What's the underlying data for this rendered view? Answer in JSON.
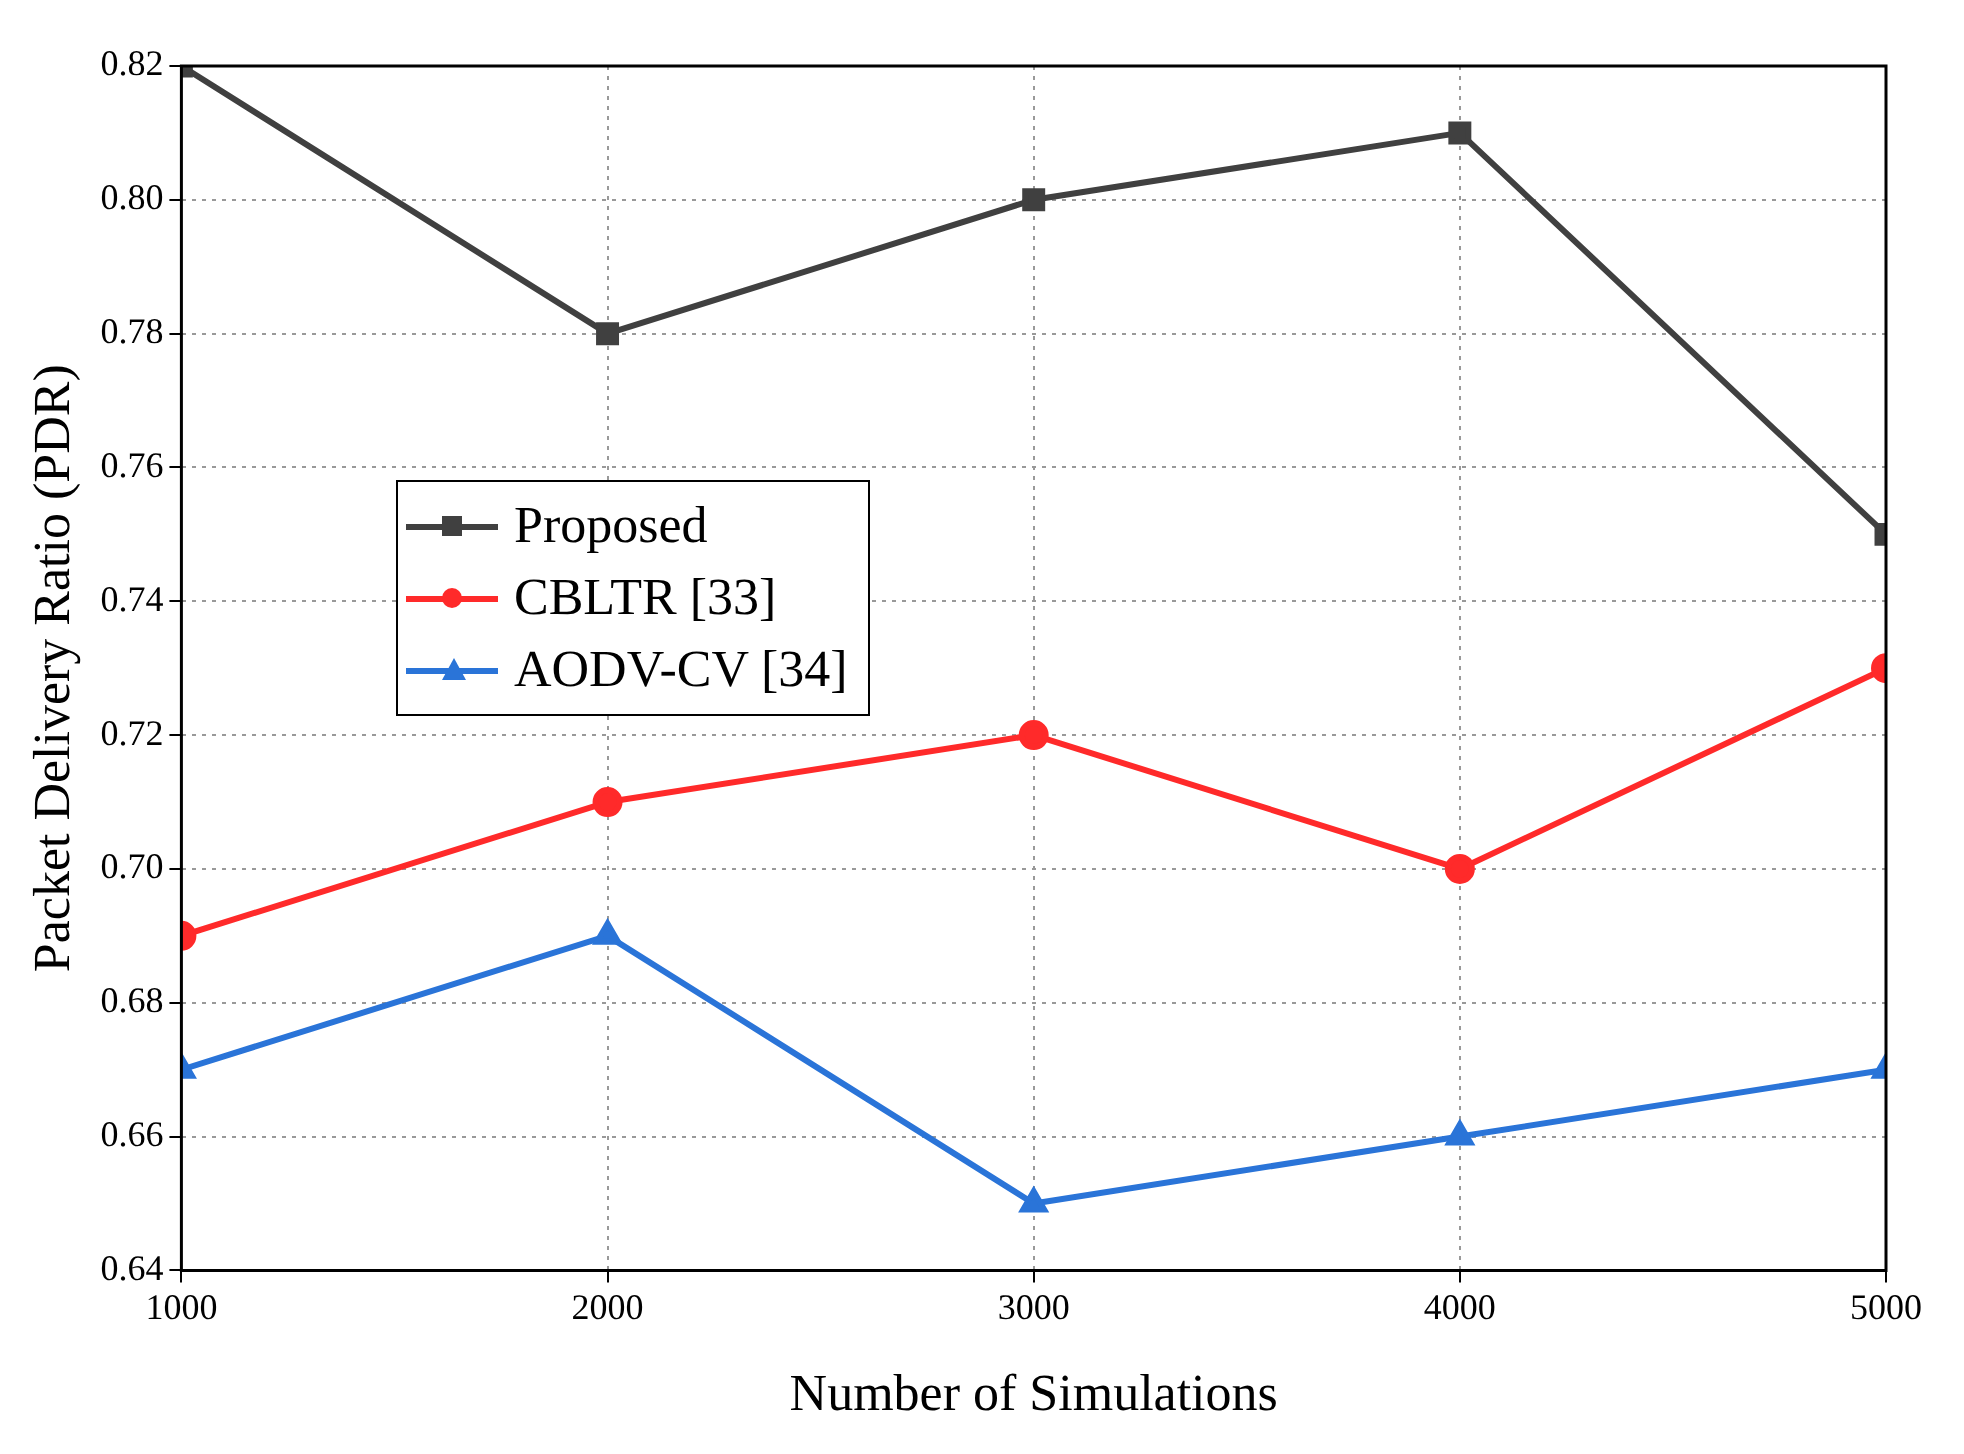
{
  "chart_data": {
    "type": "line",
    "xlabel": "Number of Simulations",
    "ylabel": "Packet Delivery Ratio (PDR)",
    "x": [
      1000,
      2000,
      3000,
      4000,
      5000
    ],
    "series": [
      {
        "name": "Proposed",
        "color": "#404040",
        "marker": "square",
        "values": [
          0.82,
          0.78,
          0.8,
          0.81,
          0.75
        ]
      },
      {
        "name": "CBLTR [33]",
        "color": "#ff2a2a",
        "marker": "circle",
        "values": [
          0.69,
          0.71,
          0.72,
          0.7,
          0.73
        ]
      },
      {
        "name": "AODV-CV [34]",
        "color": "#2a74d8",
        "marker": "triangle",
        "values": [
          0.67,
          0.69,
          0.65,
          0.66,
          0.67
        ]
      }
    ],
    "xlim": [
      1000,
      5000
    ],
    "xticks": [
      1000,
      2000,
      3000,
      4000,
      5000
    ],
    "ylim": [
      0.64,
      0.82
    ],
    "yticks": [
      0.64,
      0.66,
      0.68,
      {
        "value": 0.7,
        "label": "0.70"
      },
      0.72,
      0.74,
      0.76,
      0.78,
      {
        "value": 0.8,
        "label": "0.80"
      },
      0.82
    ],
    "grid": true,
    "legend": "left",
    "line_style": "solid"
  }
}
